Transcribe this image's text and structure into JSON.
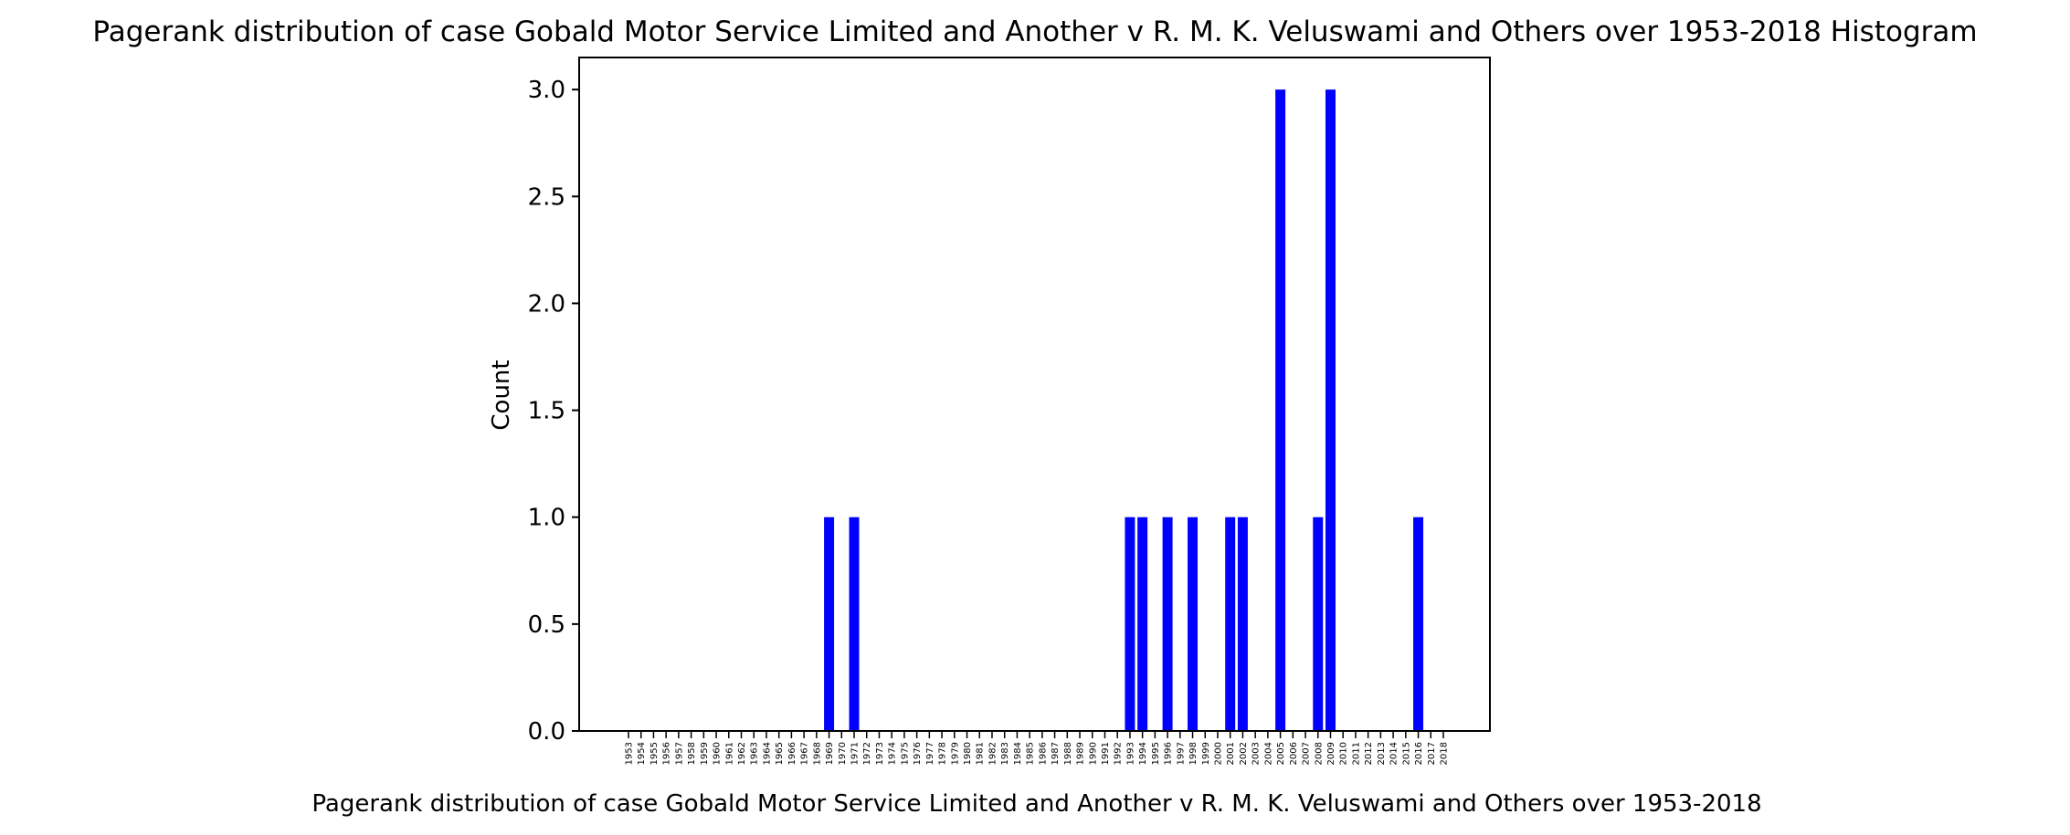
{
  "chart_data": {
    "type": "bar",
    "title": "Pagerank distribution of case Gobald Motor Service Limited and Another v R. M. K. Veluswami and Others over 1953-2018 Histogram",
    "xlabel": "Pagerank distribution of case Gobald Motor Service Limited and Another v R. M. K. Veluswami and Others over 1953-2018",
    "ylabel": "Count",
    "ylim": [
      0,
      3.15
    ],
    "yticks": [
      "0.0",
      "0.5",
      "1.0",
      "1.5",
      "2.0",
      "2.5",
      "3.0"
    ],
    "grid": false,
    "bar_color": "#0000ff",
    "categories": [
      "1953",
      "1954",
      "1955",
      "1956",
      "1957",
      "1958",
      "1959",
      "1960",
      "1961",
      "1962",
      "1963",
      "1964",
      "1965",
      "1966",
      "1967",
      "1968",
      "1969",
      "1970",
      "1971",
      "1972",
      "1973",
      "1974",
      "1975",
      "1976",
      "1977",
      "1978",
      "1979",
      "1980",
      "1981",
      "1982",
      "1983",
      "1984",
      "1985",
      "1986",
      "1987",
      "1988",
      "1989",
      "1990",
      "1991",
      "1992",
      "1993",
      "1994",
      "1995",
      "1996",
      "1997",
      "1998",
      "1999",
      "2000",
      "2001",
      "2002",
      "2003",
      "2004",
      "2005",
      "2006",
      "2007",
      "2008",
      "2009",
      "2010",
      "2011",
      "2012",
      "2013",
      "2014",
      "2015",
      "2016",
      "2017",
      "2018"
    ],
    "values": [
      0,
      0,
      0,
      0,
      0,
      0,
      0,
      0,
      0,
      0,
      0,
      0,
      0,
      0,
      0,
      0,
      1,
      0,
      1,
      0,
      0,
      0,
      0,
      0,
      0,
      0,
      0,
      0,
      0,
      0,
      0,
      0,
      0,
      0,
      0,
      0,
      0,
      0,
      0,
      0,
      1,
      1,
      0,
      1,
      0,
      1,
      0,
      0,
      1,
      1,
      0,
      0,
      3,
      0,
      0,
      1,
      3,
      0,
      0,
      0,
      0,
      0,
      0,
      1,
      0,
      0
    ]
  }
}
